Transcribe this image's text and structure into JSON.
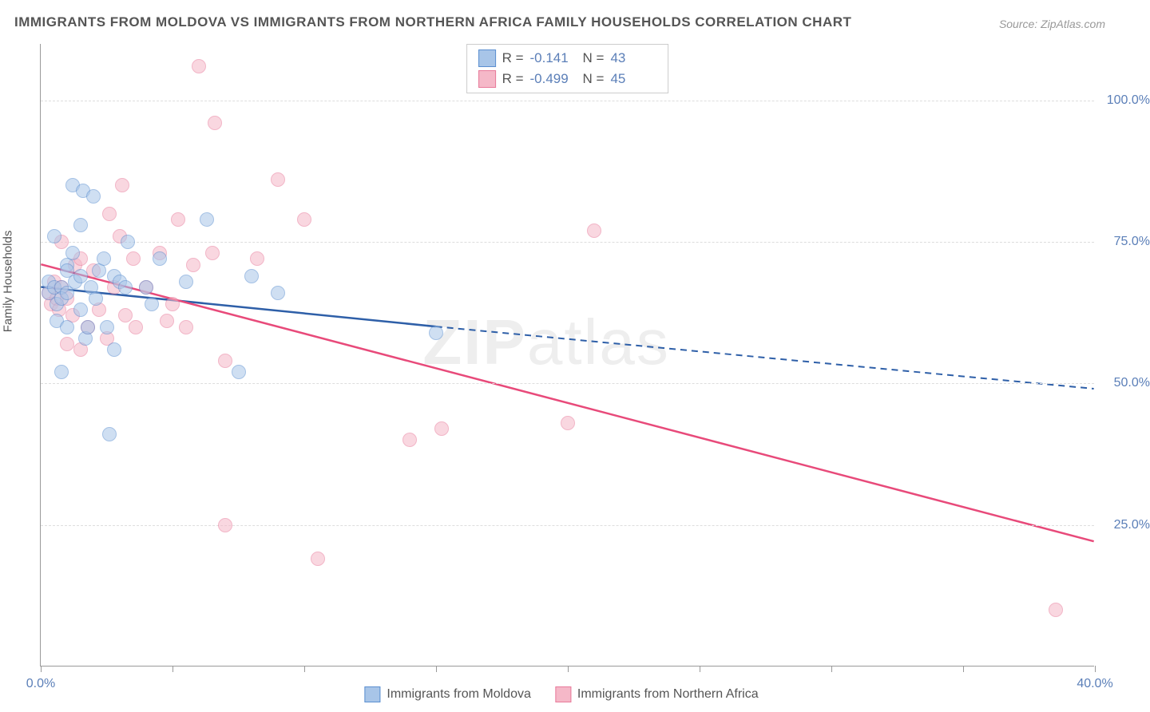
{
  "title": "IMMIGRANTS FROM MOLDOVA VS IMMIGRANTS FROM NORTHERN AFRICA FAMILY HOUSEHOLDS CORRELATION CHART",
  "source": "Source: ZipAtlas.com",
  "watermark_bold": "ZIP",
  "watermark_thin": "atlas",
  "y_axis_label": "Family Households",
  "chart": {
    "type": "scatter",
    "xlim": [
      0,
      40
    ],
    "ylim": [
      0,
      110
    ],
    "x_ticks": [
      0,
      5,
      10,
      15,
      20,
      25,
      30,
      35,
      40
    ],
    "x_tick_labels": {
      "0": "0.0%",
      "40": "40.0%"
    },
    "y_gridlines": [
      25,
      50,
      75,
      100
    ],
    "y_tick_labels": {
      "25": "25.0%",
      "50": "50.0%",
      "75": "75.0%",
      "100": "100.0%"
    },
    "background_color": "#ffffff",
    "grid_color": "#dddddd",
    "axis_color": "#999999",
    "label_color": "#5b7fb8",
    "title_color": "#555555",
    "point_radius": 9,
    "point_opacity": 0.55
  },
  "series": [
    {
      "name": "Immigrants from Moldova",
      "fill_color": "#a8c5e8",
      "stroke_color": "#5b8fd0",
      "line_color": "#2e5fa8",
      "r_label": "R =",
      "r_value": "-0.141",
      "n_label": "N =",
      "n_value": "43",
      "trend_solid": {
        "x1": 0,
        "y1": 67,
        "x2": 15,
        "y2": 60
      },
      "trend_dash": {
        "x1": 15,
        "y1": 60,
        "x2": 40,
        "y2": 49
      },
      "points": [
        [
          0.3,
          66
        ],
        [
          0.3,
          68
        ],
        [
          0.5,
          67
        ],
        [
          0.5,
          76
        ],
        [
          0.6,
          64
        ],
        [
          0.6,
          61
        ],
        [
          0.8,
          67
        ],
        [
          0.8,
          65
        ],
        [
          0.8,
          52
        ],
        [
          1.0,
          71
        ],
        [
          1.0,
          70
        ],
        [
          1.0,
          66
        ],
        [
          1.0,
          60
        ],
        [
          1.2,
          73
        ],
        [
          1.2,
          85
        ],
        [
          1.3,
          68
        ],
        [
          1.5,
          69
        ],
        [
          1.5,
          63
        ],
        [
          1.5,
          78
        ],
        [
          1.6,
          84
        ],
        [
          1.7,
          58
        ],
        [
          1.8,
          60
        ],
        [
          1.9,
          67
        ],
        [
          2.0,
          83
        ],
        [
          2.1,
          65
        ],
        [
          2.2,
          70
        ],
        [
          2.4,
          72
        ],
        [
          2.5,
          60
        ],
        [
          2.6,
          41
        ],
        [
          2.8,
          69
        ],
        [
          2.8,
          56
        ],
        [
          3.0,
          68
        ],
        [
          3.2,
          67
        ],
        [
          3.3,
          75
        ],
        [
          4.0,
          67
        ],
        [
          4.2,
          64
        ],
        [
          4.5,
          72
        ],
        [
          5.5,
          68
        ],
        [
          6.3,
          79
        ],
        [
          7.5,
          52
        ],
        [
          8.0,
          69
        ],
        [
          9.0,
          66
        ],
        [
          15.0,
          59
        ]
      ]
    },
    {
      "name": "Immigrants from Northern Africa",
      "fill_color": "#f5b8c8",
      "stroke_color": "#e87a9a",
      "line_color": "#e84a7a",
      "r_label": "R =",
      "r_value": "-0.499",
      "n_label": "N =",
      "n_value": "45",
      "trend_solid": {
        "x1": 0,
        "y1": 71,
        "x2": 40,
        "y2": 22
      },
      "trend_dash": null,
      "points": [
        [
          0.3,
          66
        ],
        [
          0.4,
          64
        ],
        [
          0.5,
          68
        ],
        [
          0.6,
          65
        ],
        [
          0.7,
          63
        ],
        [
          0.8,
          67
        ],
        [
          0.8,
          75
        ],
        [
          1.0,
          65
        ],
        [
          1.0,
          57
        ],
        [
          1.2,
          62
        ],
        [
          1.3,
          71
        ],
        [
          1.5,
          72
        ],
        [
          1.5,
          56
        ],
        [
          1.8,
          60
        ],
        [
          2.0,
          70
        ],
        [
          2.2,
          63
        ],
        [
          2.5,
          58
        ],
        [
          2.6,
          80
        ],
        [
          2.8,
          67
        ],
        [
          3.0,
          76
        ],
        [
          3.1,
          85
        ],
        [
          3.2,
          62
        ],
        [
          3.5,
          72
        ],
        [
          3.6,
          60
        ],
        [
          4.0,
          67
        ],
        [
          4.5,
          73
        ],
        [
          4.8,
          61
        ],
        [
          5.0,
          64
        ],
        [
          5.2,
          79
        ],
        [
          5.5,
          60
        ],
        [
          5.8,
          71
        ],
        [
          6.0,
          106
        ],
        [
          6.5,
          73
        ],
        [
          6.6,
          96
        ],
        [
          7.0,
          25
        ],
        [
          7.0,
          54
        ],
        [
          8.2,
          72
        ],
        [
          9.0,
          86
        ],
        [
          10.0,
          79
        ],
        [
          10.5,
          19
        ],
        [
          14.0,
          40
        ],
        [
          15.2,
          42
        ],
        [
          20.0,
          43
        ],
        [
          21.0,
          77
        ],
        [
          38.5,
          10
        ]
      ]
    }
  ],
  "bottom_legend": [
    {
      "label": "Immigrants from Moldova",
      "fill": "#a8c5e8",
      "stroke": "#5b8fd0"
    },
    {
      "label": "Immigrants from Northern Africa",
      "fill": "#f5b8c8",
      "stroke": "#e87a9a"
    }
  ]
}
